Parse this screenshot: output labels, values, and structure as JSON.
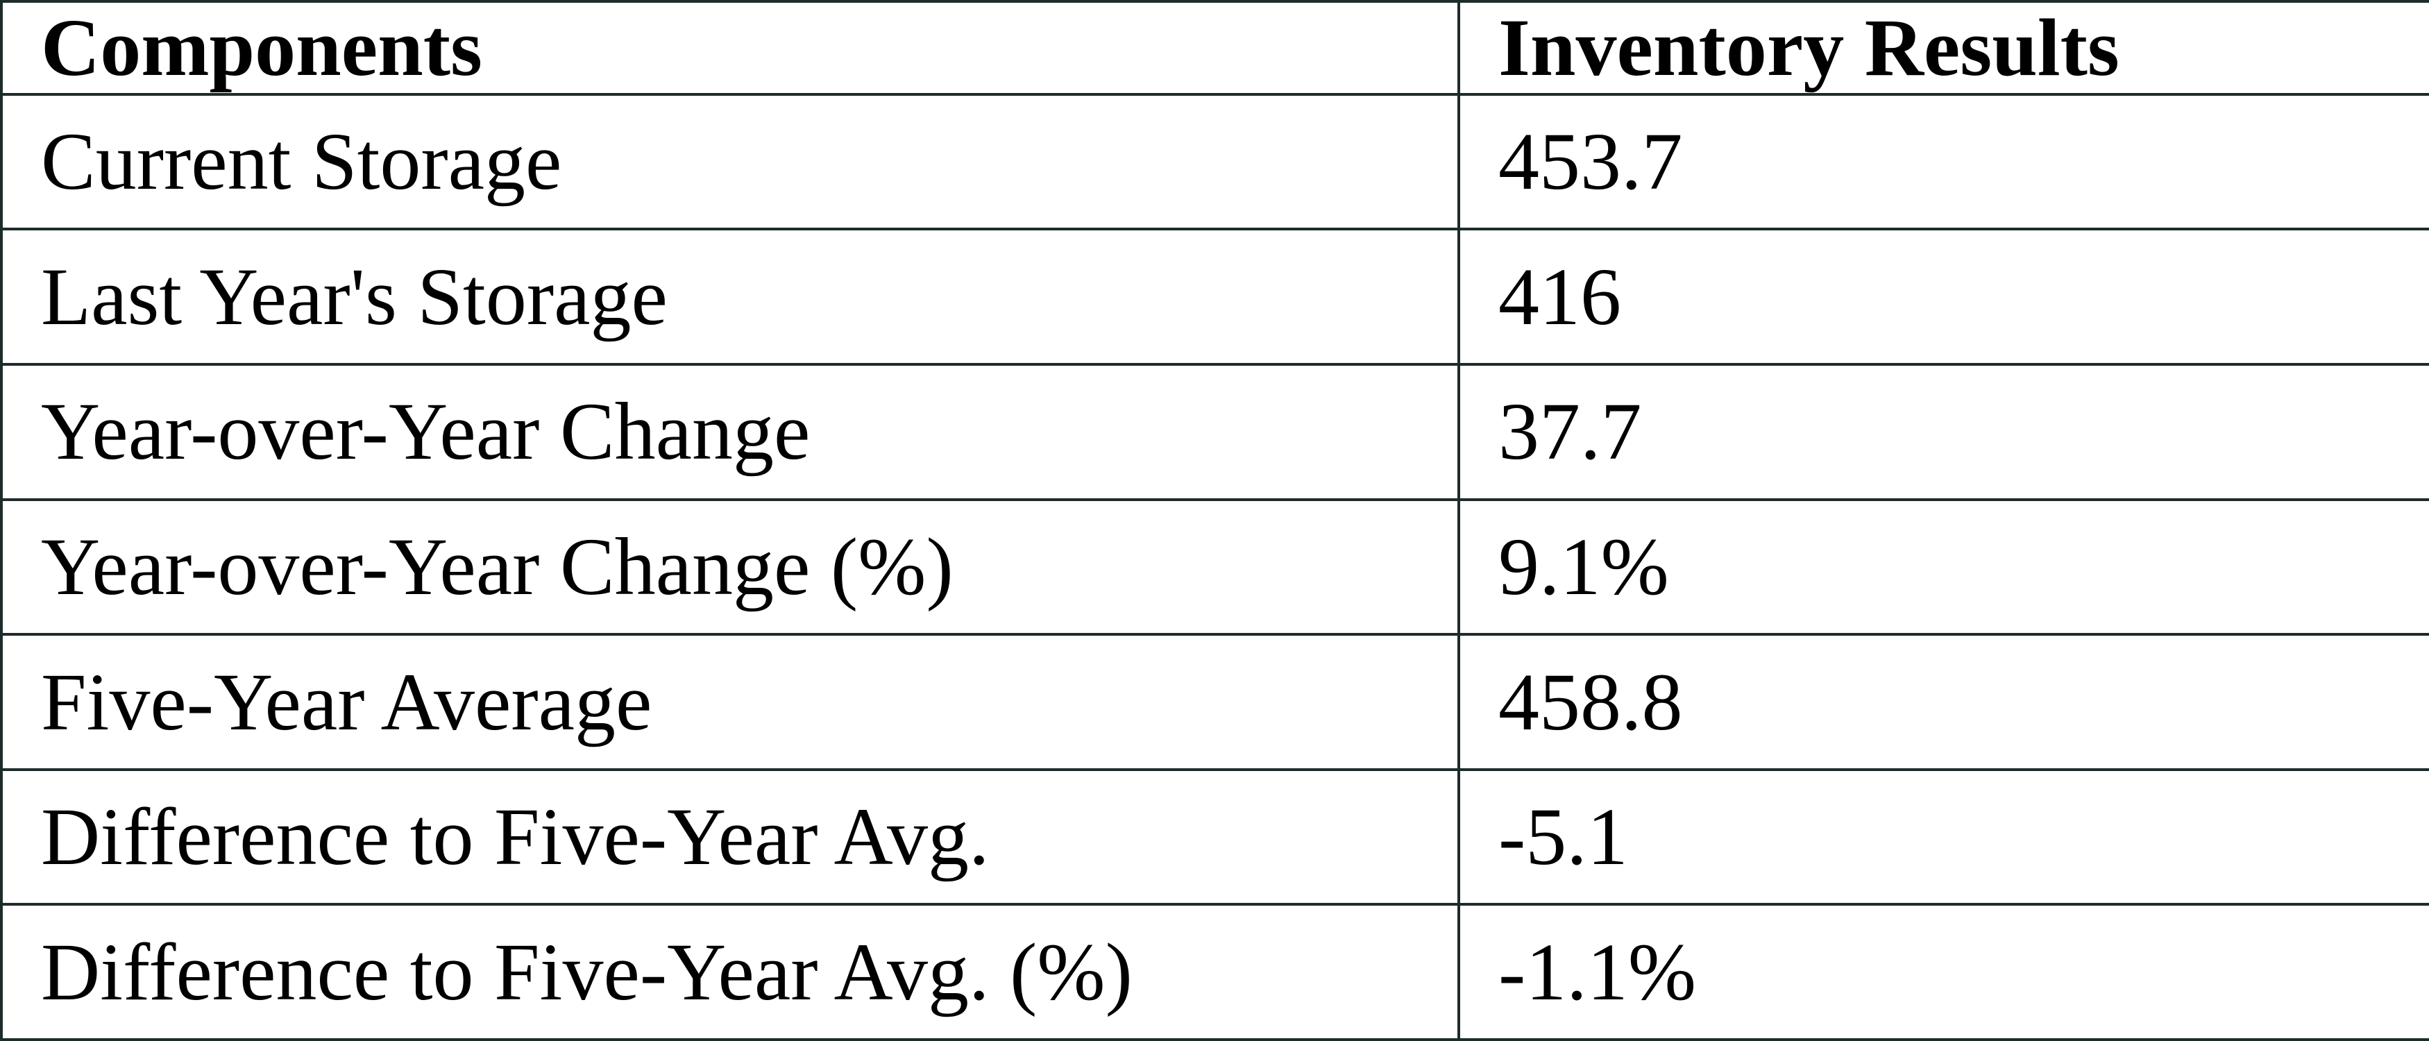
{
  "colors": {
    "border": "#1d2b2b",
    "text": "#000000",
    "background": "#ffffff"
  },
  "table": {
    "headers": {
      "components": "Components",
      "results": "Inventory Results"
    },
    "rows": [
      {
        "component": "Current Storage",
        "result": "453.7"
      },
      {
        "component": "Last Year's Storage",
        "result": "416"
      },
      {
        "component": "Year-over-Year Change",
        "result": "37.7"
      },
      {
        "component": "Year-over-Year Change (%)",
        "result": "9.1%"
      },
      {
        "component": "Five-Year Average",
        "result": "458.8"
      },
      {
        "component": "Difference to Five-Year Avg.",
        "result": "-5.1"
      },
      {
        "component": "Difference to Five-Year Avg. (%)",
        "result": "-1.1%"
      }
    ]
  },
  "chart_data": {
    "type": "table",
    "title": "",
    "columns": [
      "Components",
      "Inventory Results"
    ],
    "categories": [
      "Current Storage",
      "Last Year's Storage",
      "Year-over-Year Change",
      "Year-over-Year Change (%)",
      "Five-Year Average",
      "Difference to Five-Year Avg.",
      "Difference to Five-Year Avg. (%)"
    ],
    "values": [
      453.7,
      416,
      37.7,
      "9.1%",
      458.8,
      -5.1,
      "-1.1%"
    ]
  }
}
